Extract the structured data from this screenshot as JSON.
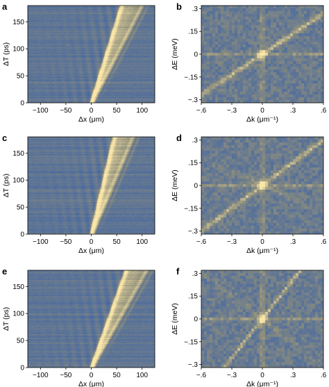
{
  "colors": {
    "map_low": "#3b62a8",
    "map_mid": "#8f8f7c",
    "map_high": "#fbe6a8",
    "axis": "#000000"
  },
  "chart_data": [
    {
      "id": "a",
      "type": "heatmap",
      "panel_label": "a",
      "xlabel": "Δx (μm)",
      "ylabel": "ΔT (ps)",
      "xlim": [
        -125,
        125
      ],
      "ylim": [
        0,
        180
      ],
      "xticks": [
        -100,
        -50,
        0,
        50,
        100
      ],
      "yticks": [
        0,
        50,
        100,
        150
      ],
      "features": {
        "kind": "space_time",
        "front_x0": 0,
        "front_slope_um_per_ps": 0.33,
        "secondary_slope_um_per_ps": 0.55,
        "seed": 11
      }
    },
    {
      "id": "b",
      "type": "heatmap",
      "panel_label": "b",
      "xlabel": "Δk (μm⁻¹)",
      "ylabel": "ΔE (meV)",
      "xlim": [
        -0.6,
        0.6
      ],
      "ylim": [
        -0.32,
        0.32
      ],
      "xticks": [
        -0.6,
        -0.3,
        0,
        0.3,
        0.6
      ],
      "yticks": [
        -0.3,
        -0.15,
        0,
        0.15,
        0.3
      ],
      "features": {
        "kind": "dispersion",
        "branches": 1,
        "slope_meV_per_um_inv": 0.45,
        "seed": 21
      }
    },
    {
      "id": "c",
      "type": "heatmap",
      "panel_label": "c",
      "xlabel": "Δx (μm)",
      "ylabel": "ΔT (ps)",
      "xlim": [
        -125,
        125
      ],
      "ylim": [
        0,
        180
      ],
      "xticks": [
        -100,
        -50,
        0,
        50,
        100
      ],
      "yticks": [
        0,
        50,
        100,
        150
      ],
      "features": {
        "kind": "space_time",
        "front_x0": 0,
        "front_slope_um_per_ps": 0.25,
        "secondary_slope_um_per_ps": 0.45,
        "seed": 33
      }
    },
    {
      "id": "d",
      "type": "heatmap",
      "panel_label": "d",
      "xlabel": "Δk (μm⁻¹)",
      "ylabel": "ΔE (meV)",
      "xlim": [
        -0.6,
        0.6
      ],
      "ylim": [
        -0.32,
        0.32
      ],
      "xticks": [
        -0.6,
        -0.3,
        0,
        0.3,
        0.6
      ],
      "yticks": [
        -0.3,
        -0.15,
        0,
        0.15,
        0.3
      ],
      "features": {
        "kind": "dispersion",
        "branches": 2,
        "slope_meV_per_um_inv": 0.5,
        "seed": 44
      }
    },
    {
      "id": "e",
      "type": "heatmap",
      "panel_label": "e",
      "xlabel": "Δx (μm)",
      "ylabel": "ΔT (ps)",
      "xlim": [
        -125,
        125
      ],
      "ylim": [
        0,
        180
      ],
      "xticks": [
        -100,
        -50,
        0,
        50,
        100
      ],
      "yticks": [
        0,
        50,
        100,
        150
      ],
      "features": {
        "kind": "space_time",
        "front_x0": 0,
        "front_slope_um_per_ps": 0.38,
        "secondary_slope_um_per_ps": 0.6,
        "seed": 55
      }
    },
    {
      "id": "f",
      "type": "heatmap",
      "panel_label": "f",
      "xlabel": "Δk (μm⁻¹)",
      "ylabel": "ΔE (meV)",
      "xlim": [
        -0.6,
        0.6
      ],
      "ylim": [
        -0.32,
        0.32
      ],
      "xticks": [
        -0.6,
        -0.3,
        0,
        0.3,
        0.6
      ],
      "yticks": [
        -0.3,
        -0.15,
        0,
        0.15,
        0.3
      ],
      "features": {
        "kind": "dispersion",
        "branches": 2,
        "slope_meV_per_um_inv": 0.85,
        "seed": 66
      }
    }
  ]
}
